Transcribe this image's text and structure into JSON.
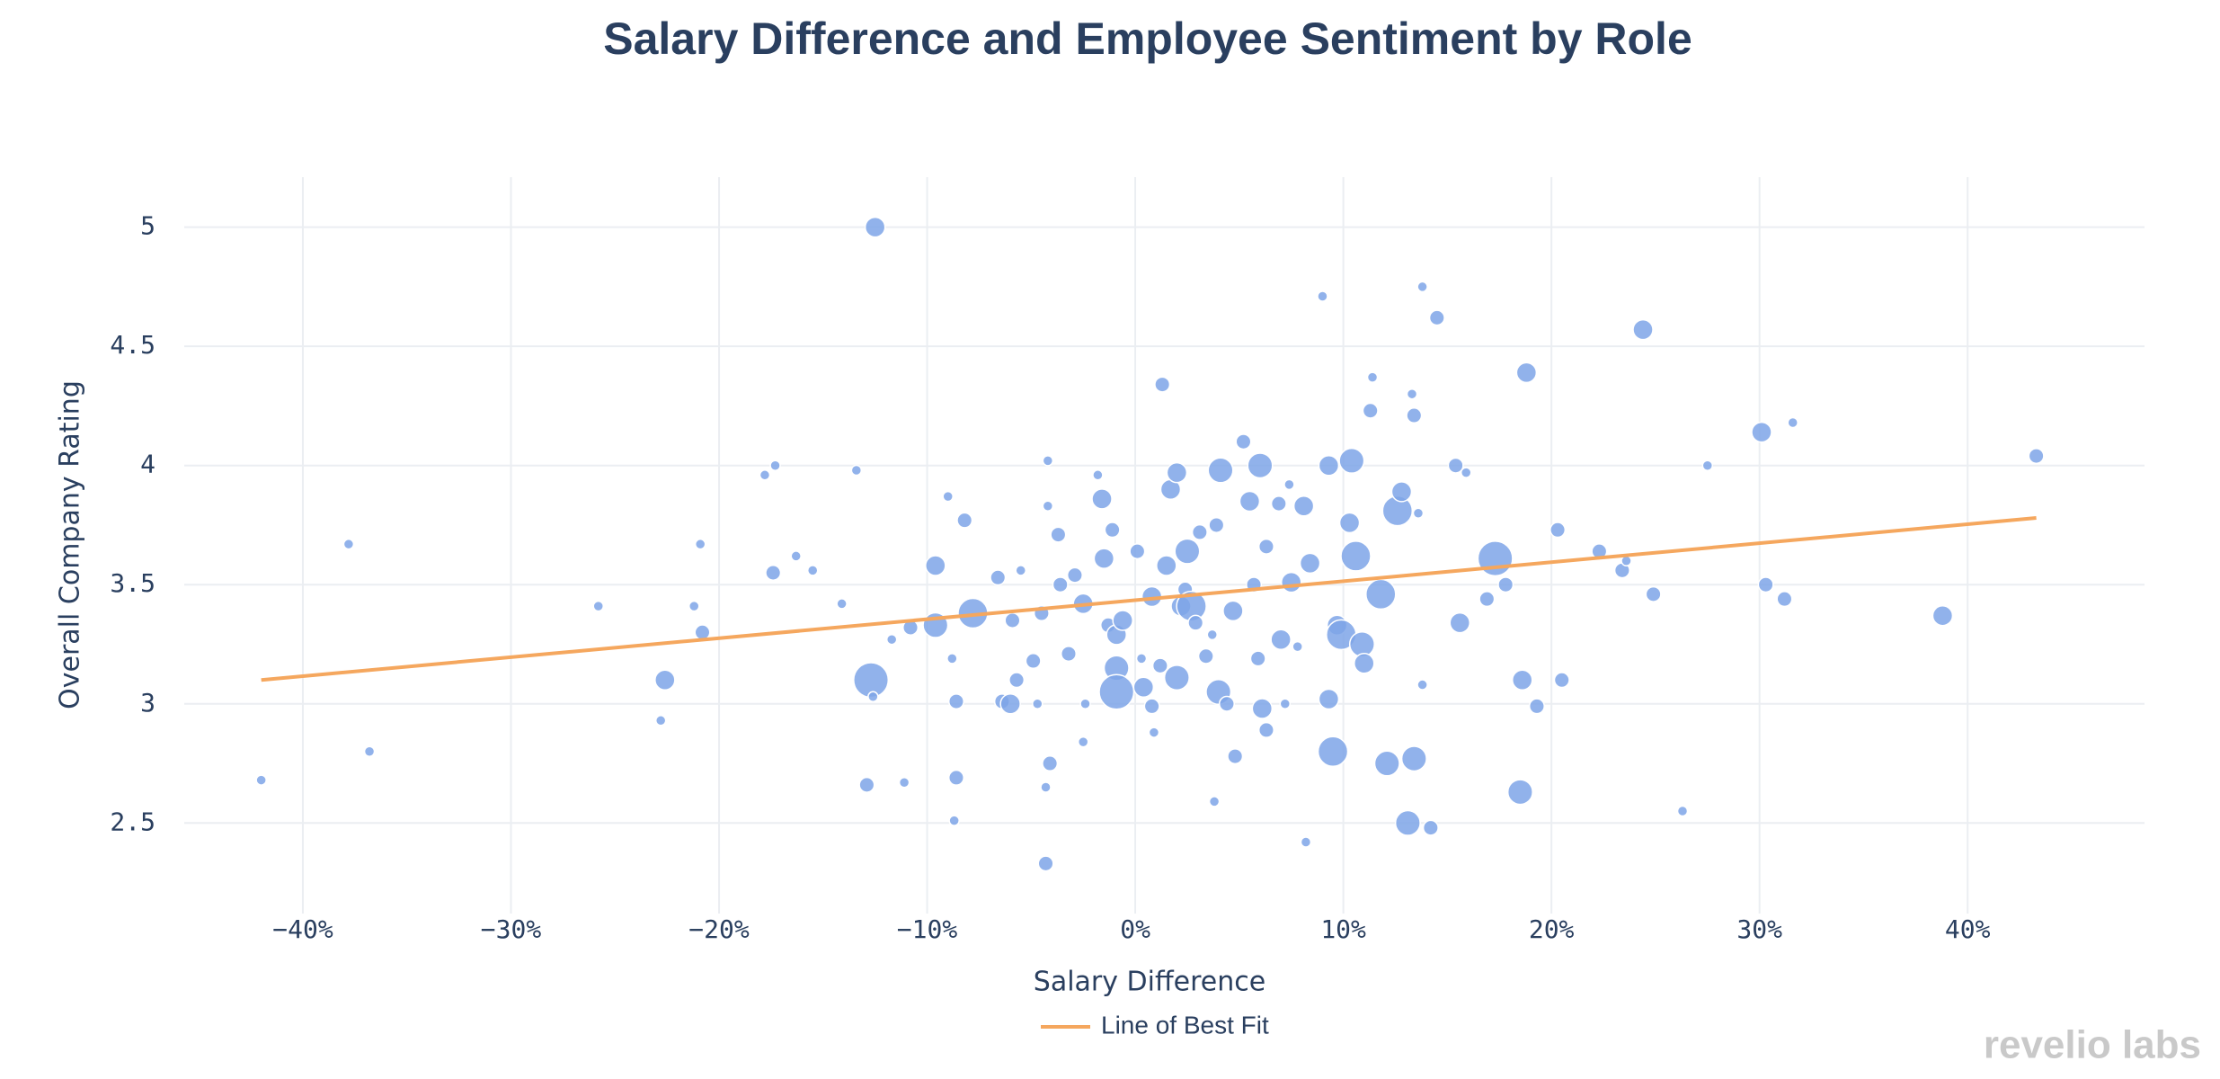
{
  "chart_data": {
    "type": "scatter",
    "title": "Salary Difference and Employee Sentiment by Role",
    "x_label": "Salary Difference",
    "y_label": "Overall Company Rating",
    "watermark": "revelio labs",
    "color": "#7ea4e8",
    "xlim": [
      -45.7,
      48.5
    ],
    "ylim": [
      2.12,
      5.21
    ],
    "xticks": [
      {
        "value": -40,
        "label": "−40%"
      },
      {
        "value": -30,
        "label": "−30%"
      },
      {
        "value": -20,
        "label": "−20%"
      },
      {
        "value": -10,
        "label": "−10%"
      },
      {
        "value": 0,
        "label": "0%"
      },
      {
        "value": 10,
        "label": "10%"
      },
      {
        "value": 20,
        "label": "20%"
      },
      {
        "value": 30,
        "label": "30%"
      },
      {
        "value": 40,
        "label": "40%"
      }
    ],
    "yticks": [
      2.5,
      3,
      3.5,
      4,
      4.5,
      5
    ],
    "grid": true,
    "legend": "bottom",
    "x": [
      -42,
      -37.8,
      -36.8,
      -25.8,
      -22.6,
      -22.8,
      -21.2,
      -20.9,
      -20.8,
      -17.8,
      -17.3,
      -17.4,
      -16.3,
      -15.5,
      -14.1,
      -13.4,
      -12.9,
      -12.5,
      -12.7,
      -12.6,
      -11.1,
      -11.7,
      -10.8,
      -9.6,
      -9.6,
      -9.0,
      -8.8,
      -8.6,
      -8.6,
      -8.7,
      -8.2,
      -7.8,
      -6.6,
      -6.4,
      -6.0,
      -5.9,
      -5.7,
      -5.5,
      -4.9,
      -4.7,
      -4.5,
      -4.2,
      -4.2,
      -4.1,
      -4.3,
      -4.3,
      -3.7,
      -3.6,
      -3.2,
      -2.9,
      -2.5,
      -2.4,
      -2.5,
      -1.8,
      -1.6,
      -1.5,
      -1.3,
      -1.1,
      -0.9,
      -0.9,
      -0.9,
      -0.6,
      0.1,
      0.3,
      0.4,
      0.8,
      0.8,
      0.9,
      1.2,
      1.3,
      1.5,
      1.7,
      2.0,
      2.0,
      2.2,
      2.4,
      2.5,
      2.7,
      2.9,
      3.1,
      3.4,
      3.7,
      3.8,
      3.9,
      4.0,
      4.1,
      4.4,
      4.7,
      4.8,
      5.2,
      5.5,
      5.7,
      5.9,
      6.0,
      6.1,
      6.3,
      6.3,
      6.9,
      7.0,
      7.2,
      7.4,
      7.5,
      7.8,
      8.1,
      8.2,
      8.4,
      9.0,
      9.3,
      9.3,
      9.5,
      9.7,
      9.9,
      10.3,
      10.4,
      10.6,
      10.9,
      11.0,
      11.3,
      11.4,
      11.8,
      12.1,
      12.6,
      12.8,
      13.1,
      13.4,
      13.4,
      13.3,
      13.6,
      13.8,
      13.8,
      14.2,
      14.5,
      15.4,
      15.6,
      15.9,
      16.9,
      17.3,
      17.8,
      18.6,
      18.5,
      18.8,
      19.3,
      20.3,
      20.5,
      22.3,
      23.4,
      23.6,
      24.4,
      24.9,
      26.3,
      27.5,
      30.1,
      30.3,
      31.2,
      31.6,
      38.8,
      43.3
    ],
    "values": [
      2.68,
      3.67,
      2.8,
      3.41,
      3.1,
      2.93,
      3.41,
      3.67,
      3.3,
      3.96,
      4.0,
      3.55,
      3.62,
      3.56,
      3.42,
      3.98,
      2.66,
      5.0,
      3.1,
      3.03,
      2.67,
      3.27,
      3.32,
      3.58,
      3.33,
      3.87,
      3.19,
      3.01,
      2.69,
      2.51,
      3.77,
      3.38,
      3.53,
      3.01,
      3.0,
      3.35,
      3.1,
      3.56,
      3.18,
      3.0,
      3.38,
      4.02,
      3.83,
      2.75,
      2.65,
      2.33,
      3.71,
      3.5,
      3.21,
      3.54,
      3.42,
      3.0,
      2.84,
      3.96,
      3.86,
      3.61,
      3.33,
      3.73,
      3.29,
      3.15,
      3.05,
      3.35,
      3.64,
      3.19,
      3.07,
      2.99,
      3.45,
      2.88,
      3.16,
      4.34,
      3.58,
      3.9,
      3.97,
      3.11,
      3.41,
      3.48,
      3.64,
      3.41,
      3.34,
      3.72,
      3.2,
      3.29,
      2.59,
      3.75,
      3.05,
      3.98,
      3.0,
      3.39,
      2.78,
      4.1,
      3.85,
      3.5,
      3.19,
      4.0,
      2.98,
      2.89,
      3.66,
      3.84,
      3.27,
      3.0,
      3.92,
      3.51,
      3.24,
      3.83,
      2.42,
      3.59,
      4.71,
      3.02,
      4.0,
      2.8,
      3.33,
      3.29,
      3.76,
      4.02,
      3.62,
      3.25,
      3.17,
      4.23,
      4.37,
      3.46,
      2.75,
      3.81,
      3.89,
      2.5,
      2.77,
      4.21,
      4.3,
      3.8,
      4.75,
      3.08,
      2.48,
      4.62,
      4.0,
      3.34,
      3.97,
      3.44,
      3.61,
      3.5,
      3.1,
      2.63,
      4.39,
      2.99,
      3.73,
      3.1,
      3.64,
      3.56,
      3.6,
      4.57,
      3.46,
      2.55,
      4.0,
      4.14,
      3.5,
      3.44,
      4.18,
      3.37,
      4.04
    ],
    "sizes": [
      1,
      1,
      1,
      1,
      2,
      1,
      1,
      1,
      1.5,
      1,
      1,
      1.5,
      1,
      1,
      1,
      1,
      1.5,
      2,
      3.5,
      1,
      1,
      1,
      1.5,
      2,
      2.5,
      1,
      1,
      1.5,
      1.5,
      1,
      1.5,
      3,
      1.5,
      1.5,
      2,
      1.5,
      1.5,
      1,
      1.5,
      1,
      1.5,
      1,
      1,
      1.5,
      1,
      1.5,
      1.5,
      1.5,
      1.5,
      1.5,
      2,
      1,
      1,
      1,
      2,
      2,
      1.5,
      1.5,
      2,
      2.5,
      3.5,
      2,
      1.5,
      1,
      2,
      1.5,
      2,
      1,
      1.5,
      1.5,
      2,
      2,
      2,
      2.5,
      2,
      1.5,
      2.5,
      3,
      1.5,
      1.5,
      1.5,
      1,
      1,
      1.5,
      2.5,
      2.5,
      1.5,
      2,
      1.5,
      1.5,
      2,
      1.5,
      1.5,
      2.5,
      2,
      1.5,
      1.5,
      1.5,
      2,
      1,
      1,
      2,
      1,
      2,
      1,
      2,
      1,
      2,
      2,
      3,
      2,
      3,
      2,
      2.5,
      3,
      2.5,
      2,
      1.5,
      1,
      3,
      2.5,
      3,
      2,
      2.5,
      2.5,
      1.5,
      1,
      1,
      1,
      1,
      1.5,
      1.5,
      1.5,
      2,
      1,
      1.5,
      3.5,
      1.5,
      2,
      2.5,
      2,
      1.5,
      1.5,
      1.5,
      1.5,
      1.5,
      1,
      2,
      1.5,
      1,
      1,
      2,
      1.5,
      1.5,
      1,
      2,
      1.5
    ],
    "series": [
      {
        "name": "Line of Best Fit",
        "color": "#f5a75e",
        "x": [
          -42,
          43.3
        ],
        "values": [
          3.1,
          3.78
        ]
      }
    ]
  }
}
